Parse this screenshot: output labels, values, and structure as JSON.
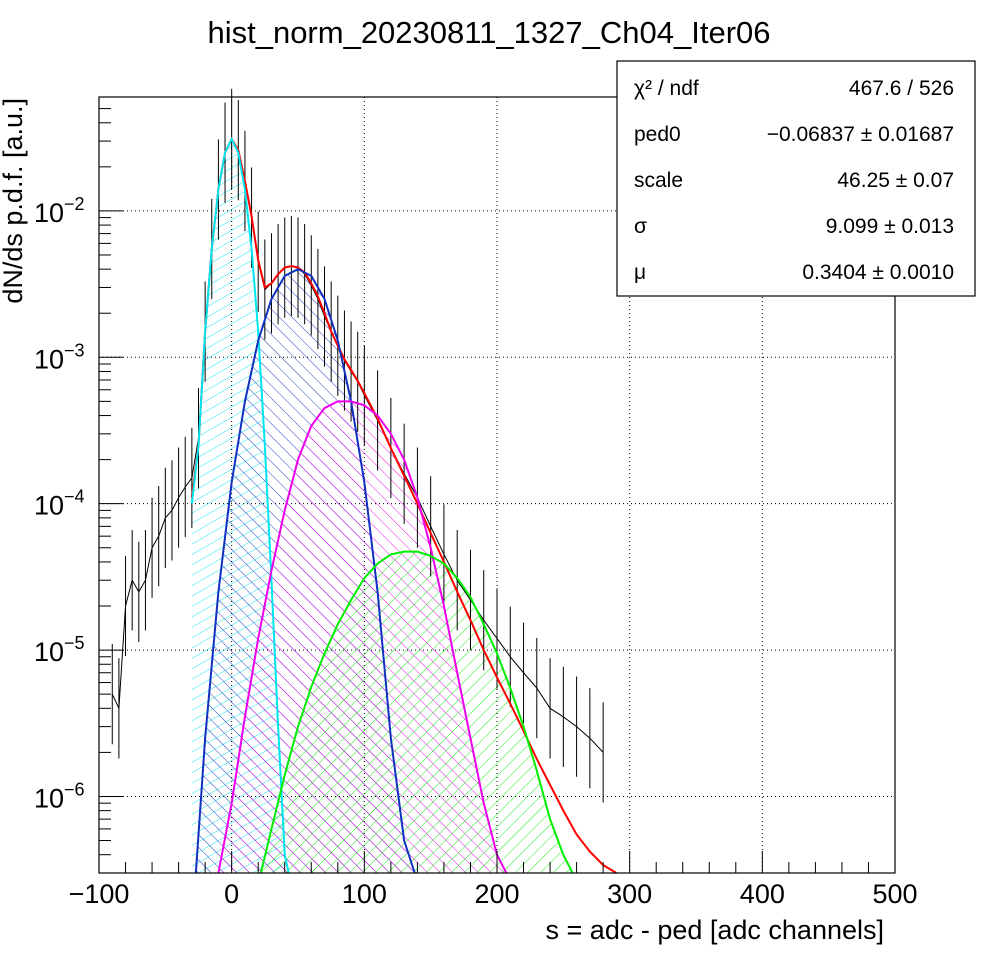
{
  "chart_data": {
    "type": "line",
    "title": "hist_norm_20230811_1327_Ch04_Iter06",
    "xlabel": "s = adc - ped [adc channels]",
    "ylabel": "dN/ds p.d.f. [a.u.]",
    "xlim": [
      -100,
      500
    ],
    "ylim": [
      3e-07,
      0.06
    ],
    "y_scale": "log",
    "grid": true,
    "x_ticks": [
      -100,
      0,
      100,
      200,
      300,
      400,
      500
    ],
    "x_tick_labels": [
      "−100",
      "0",
      "100",
      "200",
      "300",
      "400",
      "500"
    ],
    "y_ticks": [
      {
        "value": 0.01,
        "mantissa": "10",
        "exponent": "−2"
      },
      {
        "value": 0.001,
        "mantissa": "10",
        "exponent": "−3"
      },
      {
        "value": 0.0001,
        "mantissa": "10",
        "exponent": "−4"
      },
      {
        "value": 1e-05,
        "mantissa": "10",
        "exponent": "−5"
      },
      {
        "value": 1e-06,
        "mantissa": "10",
        "exponent": "−6"
      }
    ],
    "histogram": {
      "color": "#000000",
      "x": [
        -90,
        -85,
        -80,
        -75,
        -70,
        -65,
        -60,
        -55,
        -50,
        -45,
        -40,
        -35,
        -30,
        -25,
        -20,
        -15,
        -10,
        -5,
        0,
        5,
        10,
        15,
        20,
        25,
        30,
        35,
        40,
        45,
        50,
        55,
        60,
        65,
        70,
        75,
        80,
        85,
        90,
        95,
        100,
        110,
        120,
        130,
        140,
        150,
        160,
        170,
        180,
        190,
        200,
        210,
        220,
        230,
        240,
        250,
        260,
        270,
        280
      ],
      "y": [
        5e-06,
        4e-06,
        2e-05,
        3e-05,
        2.5e-05,
        3e-05,
        5e-05,
        6e-05,
        8e-05,
        9e-05,
        0.00011,
        0.00013,
        0.00015,
        0.00028,
        0.0015,
        0.0055,
        0.014,
        0.025,
        0.031,
        0.026,
        0.016,
        0.009,
        0.0045,
        0.0029,
        0.0032,
        0.0037,
        0.0041,
        0.0042,
        0.0041,
        0.0037,
        0.0031,
        0.0025,
        0.0019,
        0.0015,
        0.0012,
        0.00095,
        0.0008,
        0.00068,
        0.00055,
        0.00037,
        0.00024,
        0.00016,
        0.00011,
        7e-05,
        4.5e-05,
        3e-05,
        2.2e-05,
        1.6e-05,
        1.2e-05,
        9e-06,
        7e-06,
        5.5e-06,
        4e-06,
        3.5e-06,
        3e-06,
        2.5e-06,
        2e-06
      ]
    },
    "series": [
      {
        "color": "#ff0000",
        "hatch": false,
        "x": [
          -30,
          -25,
          -20,
          -15,
          -10,
          -5,
          0,
          5,
          10,
          15,
          20,
          25,
          30,
          35,
          40,
          45,
          50,
          55,
          60,
          65,
          70,
          75,
          80,
          85,
          90,
          95,
          100,
          110,
          120,
          130,
          140,
          150,
          160,
          170,
          180,
          190,
          200,
          210,
          220,
          230,
          240,
          250,
          260,
          270,
          280,
          290
        ],
        "y": [
          0.00011,
          0.00025,
          0.0015,
          0.0055,
          0.014,
          0.025,
          0.031,
          0.026,
          0.016,
          0.0092,
          0.0046,
          0.003,
          0.0032,
          0.0037,
          0.0041,
          0.0042,
          0.0041,
          0.0038,
          0.0032,
          0.0026,
          0.002,
          0.0015,
          0.0012,
          0.00097,
          0.00082,
          0.00069,
          0.00057,
          0.00038,
          0.00024,
          0.000155,
          0.0001,
          6.3e-05,
          4e-05,
          2.5e-05,
          1.6e-05,
          1e-05,
          6.5e-06,
          4.3e-06,
          2.8e-06,
          1.8e-06,
          1.2e-06,
          8e-07,
          5.5e-07,
          4.2e-07,
          3.4e-07,
          3e-07
        ]
      },
      {
        "color": "#00e5ee",
        "hatch": true,
        "hatch_angle": 60,
        "x": [
          -30,
          -25,
          -20,
          -15,
          -10,
          -5,
          0,
          5,
          10,
          15,
          20,
          25,
          30,
          35,
          40,
          43
        ],
        "y": [
          0.0001,
          0.00025,
          0.0015,
          0.0055,
          0.014,
          0.025,
          0.031,
          0.025,
          0.014,
          0.0055,
          0.0015,
          0.00025,
          3e-05,
          3e-06,
          4e-07,
          3e-07
        ]
      },
      {
        "color": "#1030c0",
        "hatch": true,
        "hatch_angle": -45,
        "x": [
          -27,
          -20,
          -10,
          0,
          10,
          20,
          30,
          40,
          50,
          60,
          70,
          80,
          90,
          100,
          110,
          120,
          130,
          138
        ],
        "y": [
          3e-07,
          2.5e-06,
          2.5e-05,
          0.00014,
          0.0005,
          0.0013,
          0.0025,
          0.0036,
          0.004,
          0.0036,
          0.0025,
          0.0013,
          0.0005,
          0.00014,
          2.5e-05,
          2.5e-06,
          5e-07,
          3e-07
        ]
      },
      {
        "color": "#ee00ee",
        "hatch": true,
        "hatch_angle": -45,
        "x": [
          -10,
          0,
          10,
          20,
          30,
          40,
          50,
          60,
          70,
          80,
          90,
          100,
          110,
          120,
          130,
          140,
          150,
          160,
          170,
          180,
          190,
          200,
          207
        ],
        "y": [
          3e-07,
          9e-07,
          3.5e-06,
          1.2e-05,
          3.5e-05,
          9e-05,
          0.0002,
          0.00034,
          0.00045,
          0.0005,
          0.0005,
          0.00047,
          0.0004,
          0.0003,
          0.0002,
          0.00011,
          5e-05,
          2e-05,
          7e-06,
          2.5e-06,
          9e-07,
          4e-07,
          3e-07
        ]
      },
      {
        "color": "#00ee00",
        "hatch": true,
        "hatch_angle": 45,
        "x": [
          22,
          30,
          40,
          50,
          60,
          70,
          80,
          90,
          100,
          110,
          120,
          130,
          140,
          150,
          160,
          170,
          180,
          190,
          200,
          210,
          220,
          230,
          240,
          250,
          257
        ],
        "y": [
          3e-07,
          6e-07,
          1.4e-06,
          3e-06,
          5.6e-06,
          9.5e-06,
          1.5e-05,
          2.2e-05,
          3.1e-05,
          3.9e-05,
          4.5e-05,
          4.7e-05,
          4.7e-05,
          4.4e-05,
          3.9e-05,
          3.1e-05,
          2.3e-05,
          1.5e-05,
          9.5e-06,
          5.5e-06,
          3e-06,
          1.5e-06,
          7e-07,
          4e-07,
          3e-07
        ]
      }
    ],
    "stats_box": [
      {
        "label": "χ² / ndf",
        "value": "467.6 / 526"
      },
      {
        "label": "ped0",
        "value": "−0.06837 ± 0.01687"
      },
      {
        "label": "scale",
        "value": "46.25 ± 0.07"
      },
      {
        "label": "σ",
        "value": "9.099 ± 0.013"
      },
      {
        "label": "μ",
        "value": "0.3404 ± 0.0010"
      }
    ]
  }
}
